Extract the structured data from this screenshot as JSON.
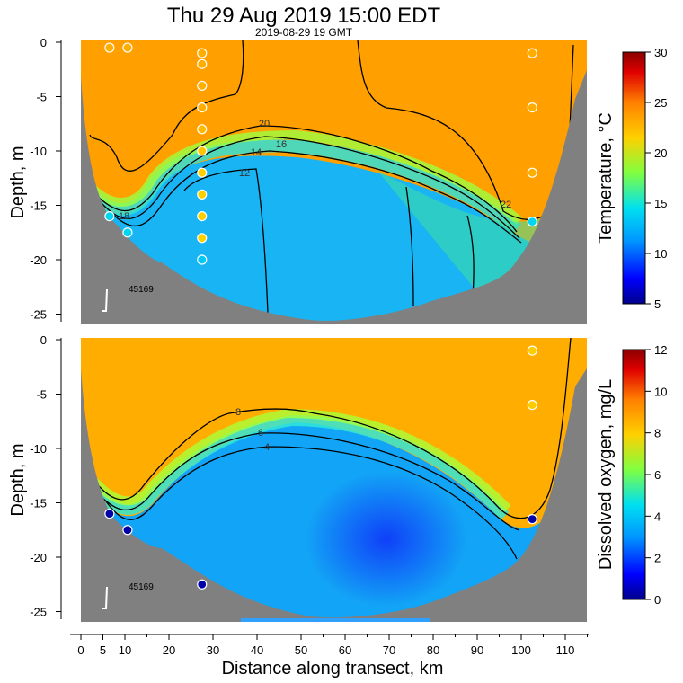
{
  "title": "Thu   29 Aug 2019   15:00 EDT",
  "subtitle": "2019-08-29 19 GMT",
  "station_label": "45169",
  "chart_data": [
    {
      "type": "heatmap",
      "panel": "temperature",
      "ylabel": "Depth, m",
      "xlabel": "",
      "xlim": [
        0,
        115
      ],
      "ylim": [
        -26,
        0
      ],
      "yticks": [
        0,
        -5,
        -10,
        -15,
        -20,
        -25
      ],
      "colorbar": {
        "label": "Temperature, °C",
        "min": 5,
        "max": 30,
        "ticks": [
          5,
          10,
          15,
          20,
          25,
          30
        ]
      },
      "contour_levels": [
        {
          "value": 12,
          "label": "12"
        },
        {
          "value": 14,
          "label": "14"
        },
        {
          "value": 16,
          "label": "16"
        },
        {
          "value": 18,
          "label": "18"
        },
        {
          "value": 20,
          "label": "20"
        },
        {
          "value": 22,
          "label": "22"
        }
      ],
      "stations": [
        {
          "x": 6.5,
          "y": -0.5,
          "value": 23.0
        },
        {
          "x": 10.6,
          "y": -0.5,
          "value": 23.0
        },
        {
          "x": 27.5,
          "y": -1,
          "value": 23.0
        },
        {
          "x": 27.5,
          "y": -2,
          "value": 23.0
        },
        {
          "x": 27.5,
          "y": -4,
          "value": 23.0
        },
        {
          "x": 27.5,
          "y": -6,
          "value": 23.0
        },
        {
          "x": 27.5,
          "y": -8,
          "value": 22.5
        },
        {
          "x": 27.5,
          "y": -10,
          "value": 22.0
        },
        {
          "x": 27.5,
          "y": -12,
          "value": 21.5
        },
        {
          "x": 27.5,
          "y": -14,
          "value": 21.5
        },
        {
          "x": 27.5,
          "y": -16,
          "value": 21.5
        },
        {
          "x": 27.5,
          "y": -18,
          "value": 21.5
        },
        {
          "x": 27.5,
          "y": -20,
          "value": 13.5
        },
        {
          "x": 6.5,
          "y": -16,
          "value": 14.0
        },
        {
          "x": 10.6,
          "y": -17.5,
          "value": 14.0
        },
        {
          "x": 102.5,
          "y": -1,
          "value": 23.0
        },
        {
          "x": 102.5,
          "y": -6,
          "value": 23.0
        },
        {
          "x": 102.5,
          "y": -12,
          "value": 23.0
        },
        {
          "x": 102.5,
          "y": -16.5,
          "value": 14.0
        }
      ]
    },
    {
      "type": "heatmap",
      "panel": "dissolved_oxygen",
      "ylabel": "Depth, m",
      "xlabel": "Distance along transect, km",
      "xlim": [
        0,
        115
      ],
      "ylim": [
        -26,
        0
      ],
      "yticks": [
        0,
        -5,
        -10,
        -15,
        -20,
        -25
      ],
      "xticks": [
        0,
        5,
        10,
        20,
        30,
        40,
        50,
        60,
        70,
        80,
        90,
        100,
        110
      ],
      "colorbar": {
        "label": "Dissolved oxygen, mg/L",
        "min": 0,
        "max": 12,
        "ticks": [
          0,
          2,
          4,
          6,
          8,
          10,
          12
        ]
      },
      "contour_levels": [
        {
          "value": 4,
          "label": "4"
        },
        {
          "value": 6,
          "label": "6"
        },
        {
          "value": 8,
          "label": "8"
        }
      ],
      "stations": [
        {
          "x": 102.5,
          "y": -1,
          "value": 8.0
        },
        {
          "x": 102.5,
          "y": -6,
          "value": 8.0
        },
        {
          "x": 6.5,
          "y": -16,
          "value": 0.3
        },
        {
          "x": 10.6,
          "y": -17.5,
          "value": 0.3
        },
        {
          "x": 27.5,
          "y": -22.5,
          "value": 0.3
        },
        {
          "x": 102.5,
          "y": -16.5,
          "value": 0.3
        }
      ]
    }
  ]
}
